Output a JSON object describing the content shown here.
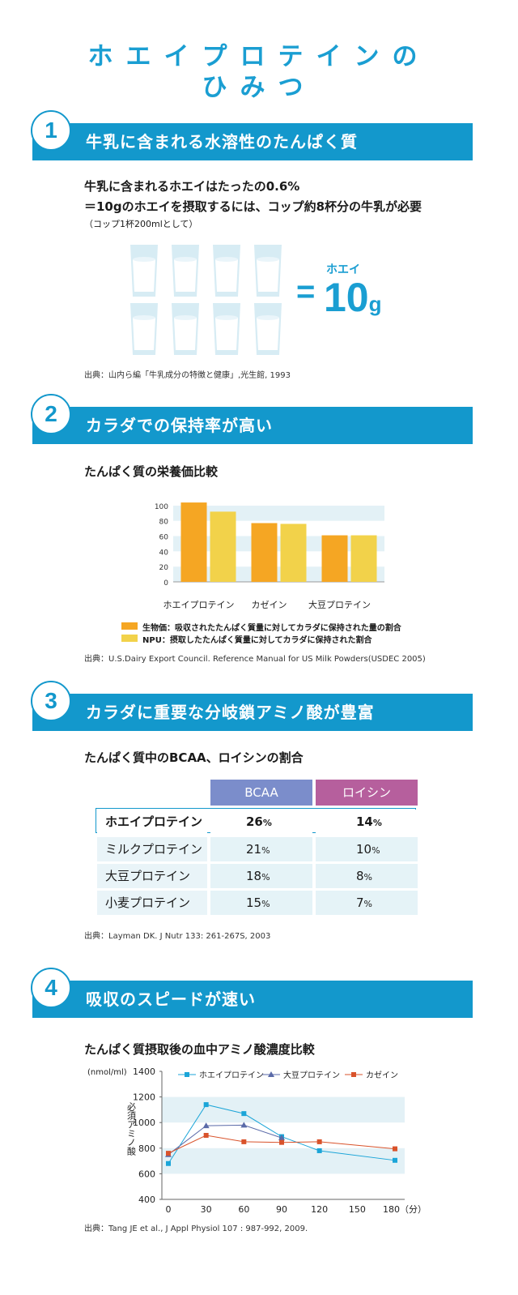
{
  "title": {
    "line1": "ホエイプロテインの",
    "line2": "ひみつ"
  },
  "section1": {
    "number": "1",
    "heading": "牛乳に含まれる水溶性のたんぱく質",
    "line1": "牛乳に含まれるホエイはたったの0.6%",
    "line2": "＝10gのホエイを摂取するには、コップ約8杯分の牛乳が必要",
    "line3": "（コップ1杯200mlとして）",
    "equals": "=",
    "whey_label": "ホエイ",
    "amount": "10",
    "unit": "g",
    "source": "出典：山内ら編「牛乳成分の特徴と健康」,光生館, 1993"
  },
  "section2": {
    "number": "2",
    "heading": "カラダでの保持率が高い",
    "subheading": "たんぱく質の栄養価比較",
    "legend": [
      {
        "label": "生物価：吸収されたたんぱく質量に対してカラダに保持された量の割合",
        "color": "#f5a623"
      },
      {
        "label": "NPU：摂取したたんぱく質量に対してカラダに保持された割合",
        "color": "#f2d24a"
      }
    ],
    "source": "出典：U.S.Dairy Export Council. Reference Manual for US Milk Powders(USDEC 2005)"
  },
  "section3": {
    "number": "3",
    "heading": "カラダに重要な分岐鎖アミノ酸が豊富",
    "subheading": "たんぱく質中のBCAA、ロイシンの割合",
    "col1": "BCAA",
    "col2": "ロイシン",
    "col1_color": "#7b8dcb",
    "col2_color": "#b65f9d",
    "rows": [
      {
        "name": "ホエイプロテイン",
        "bcaa": "26",
        "leucine": "14",
        "pct": "%"
      },
      {
        "name": "ミルクプロテイン",
        "bcaa": "21",
        "leucine": "10",
        "pct": "%"
      },
      {
        "name": "大豆プロテイン",
        "bcaa": "18",
        "leucine": "8",
        "pct": "%"
      },
      {
        "name": "小麦プロテイン",
        "bcaa": "15",
        "leucine": "7",
        "pct": "%"
      }
    ],
    "source": "出典：Layman DK. J Nutr 133: 261-267S, 2003"
  },
  "section4": {
    "number": "4",
    "heading": "吸収のスピードが速い",
    "subheading": "たんぱく質摂取後の血中アミノ酸濃度比較",
    "source": "出典：Tang JE et al., J Appl Physiol 107 : 987-992, 2009."
  },
  "chart_data": [
    {
      "type": "bar",
      "categories": [
        "ホエイプロテイン",
        "カゼイン",
        "大豆プロテイン"
      ],
      "series": [
        {
          "name": "生物価",
          "values": [
            104,
            77,
            61
          ],
          "color": "#f5a623"
        },
        {
          "name": "NPU",
          "values": [
            92,
            76,
            61
          ],
          "color": "#f2d24a"
        }
      ],
      "yticks": [
        "0",
        "20",
        "40",
        "60",
        "80",
        "100"
      ],
      "ylim": [
        0,
        120
      ]
    },
    {
      "type": "line",
      "ylabel_unit": "(nmol/ml)",
      "ylabel": "必須アミノ酸",
      "x": [
        0,
        30,
        60,
        90,
        120,
        180
      ],
      "xticks": [
        "0",
        "30",
        "60",
        "90",
        "120",
        "150",
        "180（分）"
      ],
      "yticks": [
        "400",
        "600",
        "800",
        "1000",
        "1200",
        "1400"
      ],
      "ylim": [
        400,
        1400
      ],
      "xlim": [
        0,
        180
      ],
      "series": [
        {
          "name": "ホエイプロテイン",
          "color": "#1ba5d8",
          "marker": "square",
          "x": [
            0,
            30,
            60,
            90,
            120,
            180
          ],
          "values": [
            680,
            1140,
            1070,
            890,
            780,
            705
          ]
        },
        {
          "name": "大豆プロテイン",
          "color": "#5a6aa8",
          "marker": "triangle",
          "x": [
            0,
            30,
            60,
            90
          ],
          "values": [
            750,
            975,
            980,
            880
          ]
        },
        {
          "name": "カゼイン",
          "color": "#d9532b",
          "marker": "square",
          "x": [
            0,
            30,
            60,
            90,
            120,
            180
          ],
          "values": [
            760,
            900,
            850,
            845,
            850,
            795
          ]
        }
      ]
    }
  ]
}
